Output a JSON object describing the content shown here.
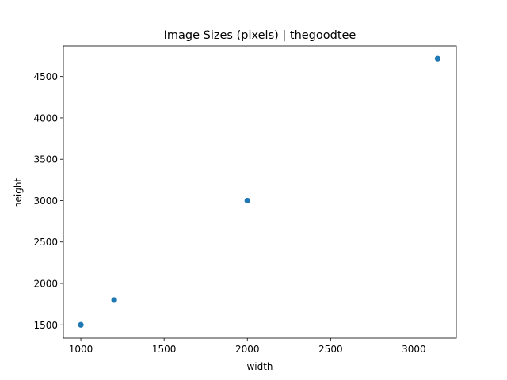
{
  "chart_data": {
    "type": "scatter",
    "title": "Image Sizes (pixels) | thegoodtee",
    "xlabel": "width",
    "ylabel": "height",
    "xlim": [
      895,
      3255
    ],
    "ylim": [
      1340,
      4870
    ],
    "xticks": [
      1000,
      1500,
      2000,
      2500,
      3000
    ],
    "yticks": [
      1500,
      2000,
      2500,
      3000,
      3500,
      4000,
      4500
    ],
    "grid": false,
    "legend": "none",
    "color": "#1f77b4",
    "points": [
      {
        "x": 1000,
        "y": 1500
      },
      {
        "x": 1200,
        "y": 1800
      },
      {
        "x": 2000,
        "y": 3000
      },
      {
        "x": 3143,
        "y": 4715
      }
    ]
  }
}
